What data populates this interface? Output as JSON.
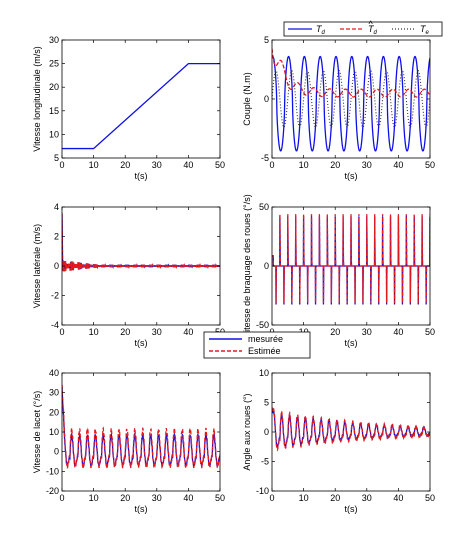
{
  "colors": {
    "blue": "#1010e8",
    "red": "#e51a1a",
    "black": "#333333"
  },
  "legend_top": {
    "entries": [
      {
        "label": "T_d",
        "display": "T",
        "sub": "d",
        "hat": false,
        "color": "#1010e8",
        "dash": "solid"
      },
      {
        "label": "T̂_d",
        "display": "T",
        "sub": "d",
        "hat": true,
        "color": "#e51a1a",
        "dash": "dashed"
      },
      {
        "label": "T_e",
        "display": "T",
        "sub": "e",
        "hat": false,
        "color": "#333333",
        "dash": "dotted"
      }
    ]
  },
  "legend_mid": {
    "entries": [
      {
        "label": "mesurée",
        "color": "#1010e8",
        "dash": "solid"
      },
      {
        "label": "Estimée",
        "color": "#e51a1a",
        "dash": "dashed"
      }
    ]
  },
  "chart_data": [
    {
      "id": "vx",
      "type": "line",
      "xlabel": "t(s)",
      "ylabel": "Vitesse longitudinale (m/s)",
      "xlim": [
        0,
        50
      ],
      "ylim": [
        5,
        30
      ],
      "xticks": [
        0,
        10,
        20,
        30,
        40,
        50
      ],
      "yticks": [
        5,
        10,
        15,
        20,
        25,
        30
      ],
      "series": [
        {
          "color": "#1010e8",
          "dash": "solid",
          "mode": "points",
          "x": [
            0,
            10,
            40,
            50
          ],
          "y": [
            7,
            7,
            25,
            25
          ]
        }
      ]
    },
    {
      "id": "torque",
      "type": "line",
      "xlabel": "t(s)",
      "ylabel": "Couple (N.m)",
      "xlim": [
        0,
        50
      ],
      "ylim": [
        -5,
        5
      ],
      "xticks": [
        0,
        10,
        20,
        30,
        40,
        50
      ],
      "yticks": [
        -5,
        0,
        5
      ],
      "series": [
        {
          "color": "#1010e8",
          "dash": "solid",
          "mode": "gen",
          "gen": {
            "kind": "sine",
            "period": 5,
            "amp": 4.0,
            "offset": -0.4,
            "phase": 0.2,
            "sharp": 1.6
          }
        },
        {
          "color": "#e51a1a",
          "dash": "dashed",
          "mode": "gen",
          "gen": {
            "kind": "decay",
            "period": 5,
            "amp": 1.1,
            "offset": 0.5,
            "start": 4.6,
            "tau": 3.5,
            "phase": 0.6
          }
        },
        {
          "color": "#333333",
          "dash": "dotted",
          "mode": "gen",
          "gen": {
            "kind": "sine",
            "period": 5,
            "amp": 2.4,
            "offset": 0.0,
            "phase": 0.0,
            "sharp": 1.0
          }
        }
      ]
    },
    {
      "id": "vy",
      "type": "line",
      "xlabel": "t(s)",
      "ylabel": "Vitesse latérale (m/s)",
      "xlim": [
        0,
        50
      ],
      "ylim": [
        -4,
        4
      ],
      "xticks": [
        0,
        10,
        20,
        30,
        40,
        50
      ],
      "yticks": [
        -4,
        -2,
        0,
        2,
        4
      ],
      "series": [
        {
          "color": "#1010e8",
          "dash": "solid",
          "mode": "gen",
          "gen": {
            "kind": "burst",
            "period": 2.5,
            "amp": 0.35,
            "decay": 0.012,
            "spike_t": 0.2,
            "spike_v": 3.5,
            "freq": 3.0
          }
        },
        {
          "color": "#e51a1a",
          "dash": "dashed",
          "mode": "gen",
          "gen": {
            "kind": "burst",
            "period": 2.5,
            "amp": 0.4,
            "decay": 0.012,
            "spike_t": 0.2,
            "spike_v": 3.6,
            "freq": 3.0
          }
        }
      ]
    },
    {
      "id": "steer",
      "type": "line",
      "xlabel": "t(s)",
      "ylabel": "Vitesse de braquage des roues (°/s)",
      "xlim": [
        0,
        50
      ],
      "ylim": [
        -50,
        50
      ],
      "xticks": [
        0,
        10,
        20,
        30,
        40,
        50
      ],
      "yticks": [
        -50,
        0,
        50
      ],
      "series": [
        {
          "color": "#1010e8",
          "dash": "solid",
          "mode": "gen",
          "gen": {
            "kind": "pulse",
            "period": 2.5,
            "up": 42,
            "down": -42,
            "width": 0.25
          }
        },
        {
          "color": "#e51a1a",
          "dash": "dashed",
          "mode": "gen",
          "gen": {
            "kind": "pulse",
            "period": 2.5,
            "up": 44,
            "down": -40,
            "width": 0.25
          }
        }
      ]
    },
    {
      "id": "yaw",
      "type": "line",
      "xlabel": "t(s)",
      "ylabel": "Vitesse de lacet (°/s)",
      "xlim": [
        0,
        50
      ],
      "ylim": [
        -20,
        40
      ],
      "xticks": [
        0,
        10,
        20,
        30,
        40,
        50
      ],
      "yticks": [
        -20,
        -10,
        0,
        10,
        20,
        30,
        40
      ],
      "series": [
        {
          "color": "#1010e8",
          "dash": "solid",
          "mode": "gen",
          "gen": {
            "kind": "saw",
            "period": 2.5,
            "amp": 9,
            "offset": 0,
            "spike_v": 33,
            "noise": 2
          }
        },
        {
          "color": "#e51a1a",
          "dash": "dashed",
          "mode": "gen",
          "gen": {
            "kind": "saw",
            "period": 2.5,
            "amp": 11,
            "offset": 1,
            "spike_v": 34,
            "noise": 3
          }
        }
      ]
    },
    {
      "id": "wheel",
      "type": "line",
      "xlabel": "t(s)",
      "ylabel": "Angle aux roues (°)",
      "xlim": [
        0,
        50
      ],
      "ylim": [
        -10,
        10
      ],
      "xticks": [
        0,
        10,
        20,
        30,
        40,
        50
      ],
      "yticks": [
        -10,
        -5,
        0,
        5,
        10
      ],
      "series": [
        {
          "color": "#1010e8",
          "dash": "solid",
          "mode": "gen",
          "gen": {
            "kind": "saw",
            "period": 2.5,
            "amp": 3.5,
            "offset": 0,
            "spike_v": 4,
            "noise": 0.5,
            "damp": 0.03
          }
        },
        {
          "color": "#e51a1a",
          "dash": "dashed",
          "mode": "gen",
          "gen": {
            "kind": "saw",
            "period": 2.5,
            "amp": 4.0,
            "offset": 0,
            "spike_v": 4.2,
            "noise": 0.6,
            "damp": 0.03
          }
        }
      ]
    }
  ]
}
